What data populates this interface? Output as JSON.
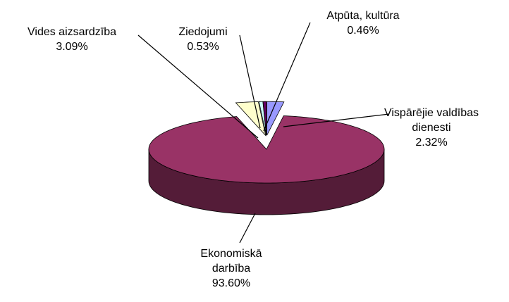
{
  "chart_data": {
    "type": "pie",
    "categories": [
      "Vispārējie valdības dienesti",
      "Ekonomiskā darbība",
      "Vides aizsardzība",
      "Ziedojumi",
      "Atpūta, kultūra"
    ],
    "values": [
      2.32,
      93.6,
      3.09,
      0.53,
      0.46
    ],
    "value_labels": [
      "2.32%",
      "93.60%",
      "3.09%",
      "0.53%",
      "0.46%"
    ],
    "colors": [
      "#9999ff",
      "#993366",
      "#ffffcc",
      "#ccffff",
      "#660066"
    ]
  }
}
